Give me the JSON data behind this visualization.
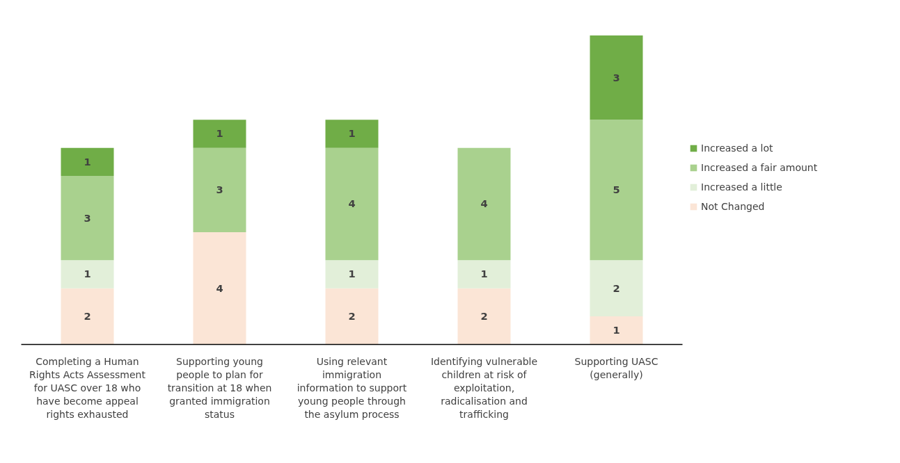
{
  "chart_data": {
    "type": "bar",
    "stacked": true,
    "data_labels": true,
    "legend": "right",
    "grid": false,
    "categories": [
      "Completing a Human Rights Acts Assessment for UASC over 18 who have become appeal rights exhausted",
      "Supporting young people to plan for transition at 18 when granted immigration status",
      "Using relevant immigration information to support young people through the asylum process",
      "Identifying vulnerable children at risk of exploitation, radicalisation and trafficking",
      "Supporting UASC (generally)"
    ],
    "series": [
      {
        "name": "Not Changed",
        "color": "#fbe5d6",
        "values": [
          2,
          4,
          2,
          2,
          1
        ]
      },
      {
        "name": "Increased a little",
        "color": "#e2efd9",
        "values": [
          1,
          null,
          1,
          1,
          2
        ]
      },
      {
        "name": "Increased a fair amount",
        "color": "#a9d18e",
        "values": [
          3,
          3,
          4,
          4,
          5
        ]
      },
      {
        "name": "Increased a lot",
        "color": "#70ad47",
        "values": [
          1,
          1,
          1,
          null,
          3
        ]
      }
    ]
  }
}
